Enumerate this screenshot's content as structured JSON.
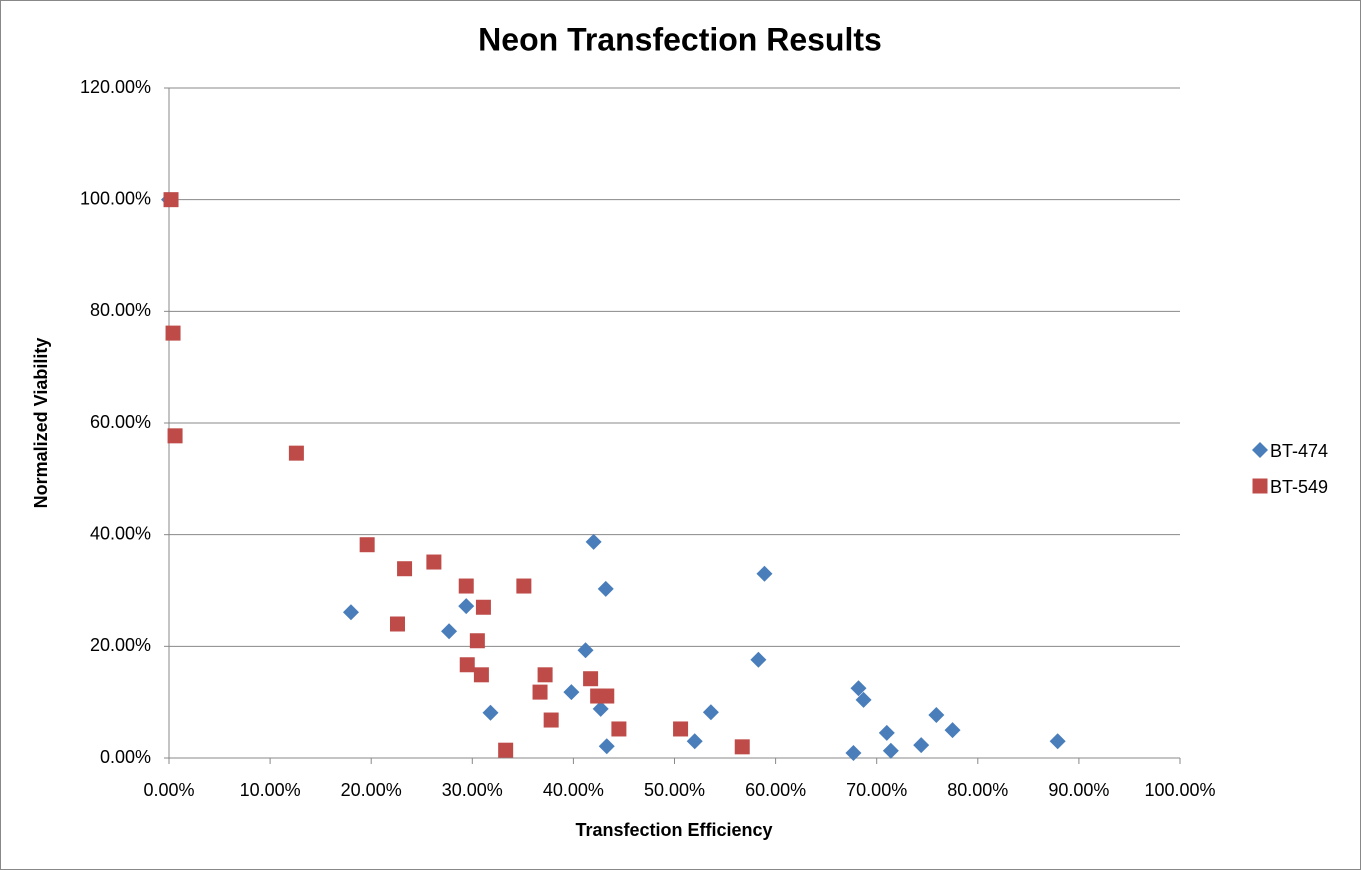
{
  "chart_data": {
    "type": "scatter",
    "title": "Neon Transfection Results",
    "x_label": "Transfection Efficiency",
    "y_label": "Normalized Viability",
    "xlim": [
      0,
      100
    ],
    "ylim": [
      0,
      120
    ],
    "xticks": [
      {
        "value": 0,
        "label": "0.00%"
      },
      {
        "value": 10,
        "label": "10.00%"
      },
      {
        "value": 20,
        "label": "20.00%"
      },
      {
        "value": 30,
        "label": "30.00%"
      },
      {
        "value": 40,
        "label": "40.00%"
      },
      {
        "value": 50,
        "label": "50.00%"
      },
      {
        "value": 60,
        "label": "60.00%"
      },
      {
        "value": 70,
        "label": "70.00%"
      },
      {
        "value": 80,
        "label": "80.00%"
      },
      {
        "value": 90,
        "label": "90.00%"
      },
      {
        "value": 100,
        "label": "100.00%"
      }
    ],
    "yticks": [
      {
        "value": 0,
        "label": "0.00%"
      },
      {
        "value": 20,
        "label": "20.00%"
      },
      {
        "value": 40,
        "label": "40.00%"
      },
      {
        "value": 60,
        "label": "60.00%"
      },
      {
        "value": 80,
        "label": "80.00%"
      },
      {
        "value": 100,
        "label": "100.00%"
      },
      {
        "value": 120,
        "label": "120.00%"
      }
    ],
    "grid": true,
    "legend": "right",
    "series": [
      {
        "name": "BT-474",
        "color": "#4a7ebb",
        "marker": "diamond",
        "x": [
          0,
          18.0,
          29.4,
          27.7,
          31.8,
          42.0,
          43.2,
          41.2,
          39.8,
          42.7,
          43.3,
          52.0,
          53.6,
          58.9,
          58.3,
          67.7,
          68.2,
          68.7,
          71.0,
          71.4,
          74.4,
          75.9,
          77.5,
          87.9
        ],
        "values": [
          100,
          26.1,
          27.2,
          22.7,
          8.1,
          38.7,
          30.3,
          19.3,
          11.8,
          8.8,
          2.1,
          3.0,
          8.2,
          33.0,
          17.6,
          0.9,
          12.5,
          10.4,
          4.5,
          1.3,
          2.3,
          7.7,
          5.0,
          3.0
        ]
      },
      {
        "name": "BT-549",
        "color": "#be4b48",
        "marker": "square",
        "x": [
          0.2,
          0.4,
          0.6,
          12.6,
          19.6,
          23.3,
          22.6,
          26.2,
          29.4,
          31.1,
          30.5,
          29.5,
          30.9,
          33.3,
          35.1,
          37.2,
          36.7,
          37.8,
          41.7,
          42.4,
          43.3,
          44.5,
          50.6,
          56.7
        ],
        "values": [
          100,
          76.1,
          57.7,
          54.6,
          38.2,
          33.9,
          24.0,
          35.1,
          30.8,
          27.0,
          21.0,
          16.7,
          14.9,
          1.4,
          30.8,
          14.9,
          11.8,
          6.8,
          14.2,
          11.1,
          11.1,
          5.2,
          5.2,
          2.0
        ]
      }
    ]
  }
}
